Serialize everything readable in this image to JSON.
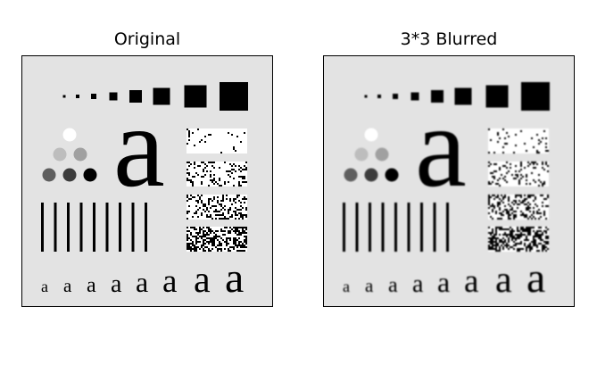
{
  "panels": [
    {
      "title": "Original",
      "blurred": false
    },
    {
      "title": "3*3 Blurred",
      "blurred": true
    }
  ],
  "test_pattern": {
    "background_color": "#e3e3e3",
    "square_sizes": [
      3,
      4,
      6,
      9,
      14,
      19,
      25,
      32
    ],
    "circle_colors": [
      "#ffffff",
      "#bdbdbd",
      "#a0a0a0",
      "#5e5e5e",
      "#3c3c3c",
      "#000000"
    ],
    "bar_count": 9,
    "noise_levels": [
      0.08,
      0.18,
      0.32,
      0.5
    ],
    "big_letter": "a",
    "letter_row": [
      "a",
      "a",
      "a",
      "a",
      "a",
      "a",
      "a",
      "a"
    ],
    "letter_sizes": [
      18,
      21,
      24,
      28,
      32,
      37,
      42,
      48
    ]
  }
}
